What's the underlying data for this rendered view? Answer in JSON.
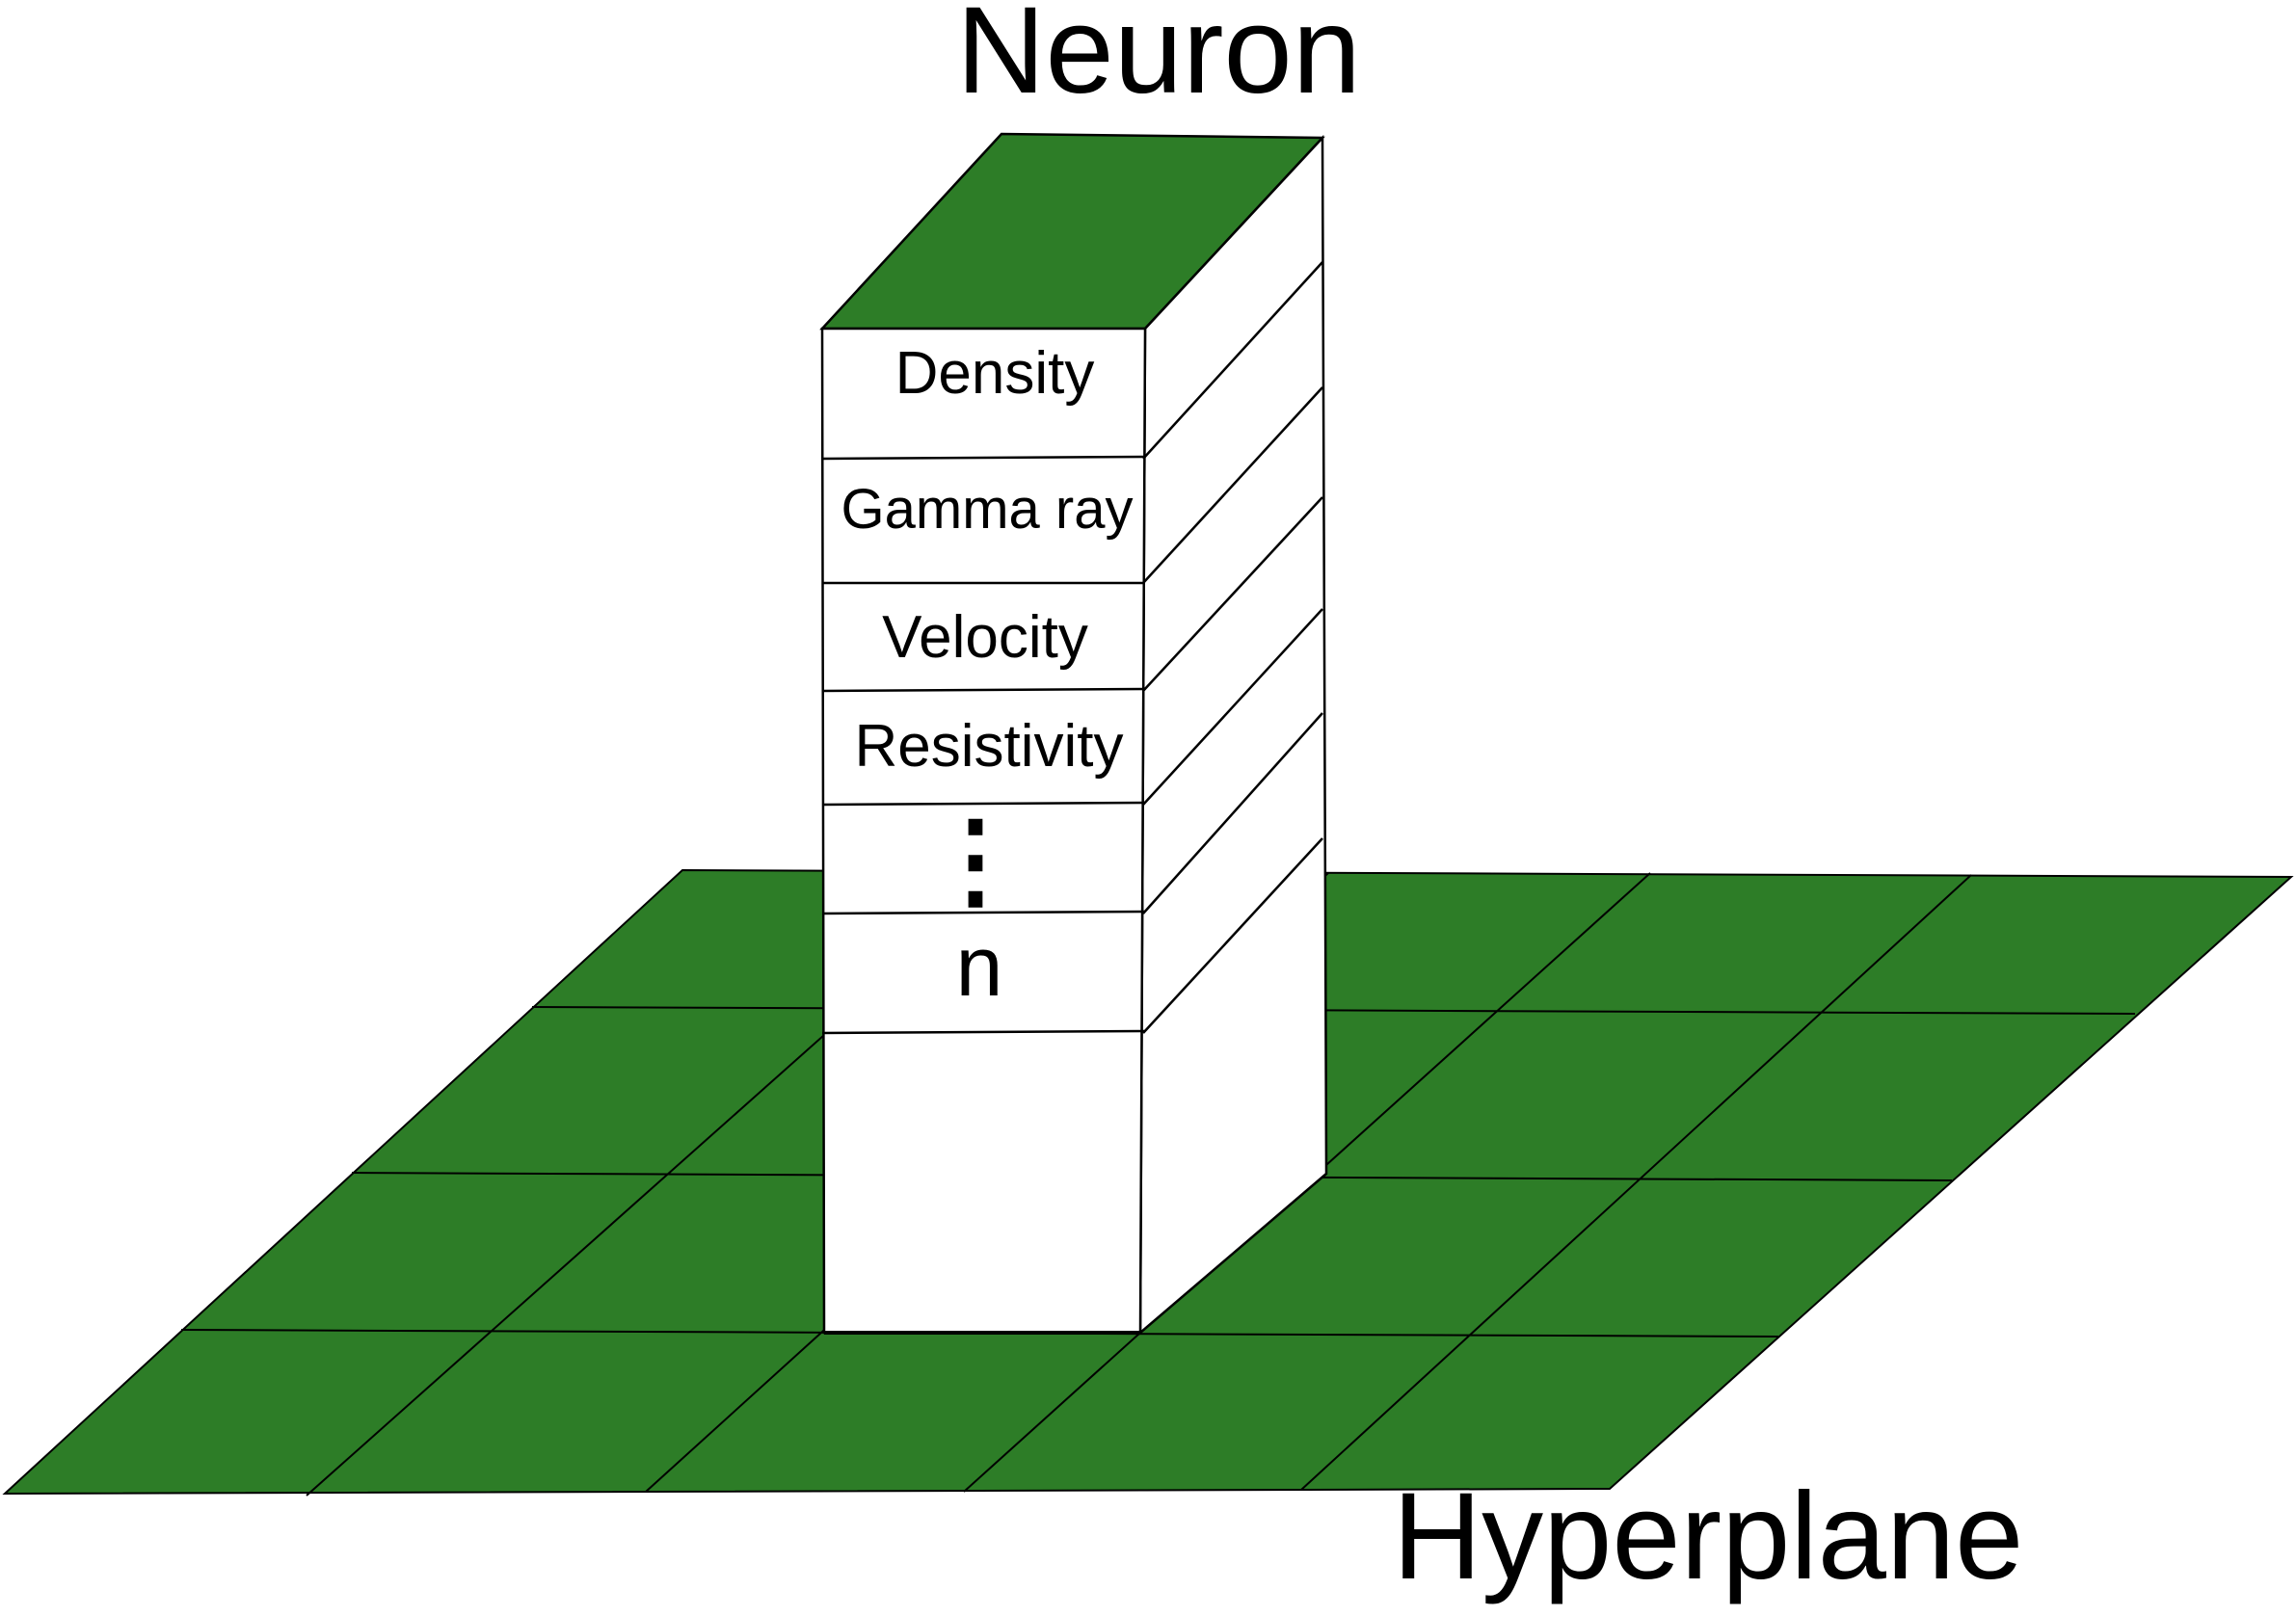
{
  "title": "Neuron",
  "plane_label": "Hyperplane",
  "layers": [
    "Density",
    "Gamma ray",
    "Velocity",
    "Resistivity",
    "⋮",
    "n"
  ],
  "colors": {
    "plane": "#2d7d27",
    "prism_top": "#2d7d27",
    "prism_face": "#ffffff",
    "outline": "#000000"
  }
}
